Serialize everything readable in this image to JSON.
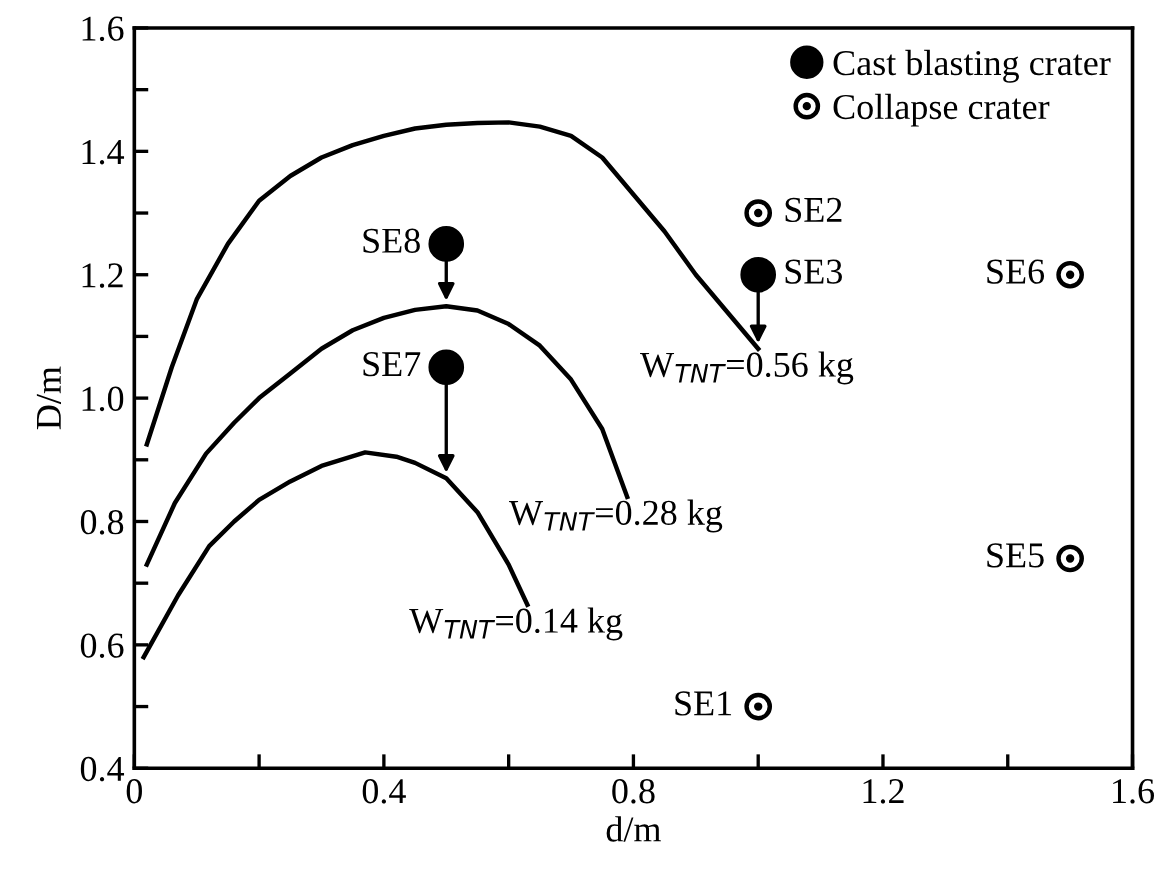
{
  "chart_data": {
    "type": "line",
    "xlabel": "d/m",
    "ylabel": "D/m",
    "xlim": [
      0,
      1.6
    ],
    "ylim": [
      0.4,
      1.6
    ],
    "xticks": [
      0,
      {
        "value": 0.2,
        "label": null
      },
      0.4,
      {
        "value": 0.6,
        "label": null
      },
      0.8,
      {
        "value": 1.0,
        "label": null
      },
      1.2,
      {
        "value": 1.4,
        "label": null
      },
      1.6
    ],
    "yticks": [
      0.4,
      {
        "value": 0.5,
        "label": null
      },
      0.6,
      {
        "value": 0.7,
        "label": null
      },
      0.8,
      {
        "value": 0.9,
        "label": null
      },
      {
        "value": 1.0,
        "label": "1.0"
      },
      {
        "value": 1.1,
        "label": null
      },
      1.2,
      {
        "value": 1.3,
        "label": null
      },
      1.4,
      {
        "value": 1.5,
        "label": null
      },
      1.6
    ],
    "grid": false,
    "legend": "top right",
    "line_style": "solid",
    "series": [
      {
        "name": "W$_{TNT}$=0.56 kg",
        "color": "#000000",
        "marker": "none",
        "x": [
          0.02,
          0.06,
          0.1,
          0.15,
          0.2,
          0.25,
          0.3,
          0.35,
          0.4,
          0.45,
          0.5,
          0.55,
          0.6,
          0.65,
          0.7,
          0.75,
          0.8,
          0.85,
          0.9,
          0.95,
          1.0
        ],
        "values": [
          0.925,
          1.05,
          1.16,
          1.25,
          1.32,
          1.36,
          1.39,
          1.41,
          1.425,
          1.437,
          1.443,
          1.446,
          1.447,
          1.44,
          1.425,
          1.39,
          1.33,
          1.27,
          1.2,
          1.14,
          1.08
        ]
      },
      {
        "name": "W$_{TNT}$=0.28 kg",
        "color": "#000000",
        "marker": "none",
        "x": [
          0.02,
          0.065,
          0.115,
          0.16,
          0.2,
          0.25,
          0.3,
          0.35,
          0.4,
          0.45,
          0.5,
          0.55,
          0.6,
          0.65,
          0.7,
          0.75,
          0.79
        ],
        "values": [
          0.73,
          0.83,
          0.91,
          0.96,
          1.0,
          1.04,
          1.08,
          1.11,
          1.13,
          1.143,
          1.149,
          1.142,
          1.12,
          1.085,
          1.03,
          0.95,
          0.84
        ]
      },
      {
        "name": "W$_{TNT}$=0.14 kg",
        "color": "#000000",
        "marker": "none",
        "x": [
          0.015,
          0.07,
          0.12,
          0.16,
          0.2,
          0.25,
          0.3,
          0.37,
          0.42,
          0.45,
          0.5,
          0.55,
          0.6,
          0.63
        ],
        "values": [
          0.58,
          0.68,
          0.76,
          0.8,
          0.835,
          0.865,
          0.89,
          0.912,
          0.905,
          0.895,
          0.87,
          0.815,
          0.73,
          0.665
        ]
      },
      {
        "name": "Cast blasting crater",
        "type": "scatter",
        "color": "#000000",
        "marker": "circle",
        "x": [
          0.5,
          0.5,
          1.0
        ],
        "values": [
          1.25,
          1.05,
          1.2
        ]
      },
      {
        "name": "Collapse crater",
        "type": "scatter",
        "color": "#000000",
        "marker": "circle-dot",
        "x": [
          1.0,
          1.5,
          1.5,
          1.0
        ],
        "values": [
          1.3,
          1.2,
          0.74,
          0.5
        ]
      }
    ],
    "annotations": [
      {
        "text": "SE8",
        "x": 0.5,
        "y": 1.25
      },
      {
        "text": "SE7",
        "x": 0.5,
        "y": 1.05
      },
      {
        "text": "SE3",
        "x": 1.0,
        "y": 1.2
      },
      {
        "text": "SE2",
        "x": 1.0,
        "y": 1.3
      },
      {
        "text": "SE6",
        "x": 1.5,
        "y": 1.2
      },
      {
        "text": "SE5",
        "x": 1.5,
        "y": 0.74
      },
      {
        "text": "SE1",
        "x": 1.0,
        "y": 0.5
      }
    ]
  }
}
